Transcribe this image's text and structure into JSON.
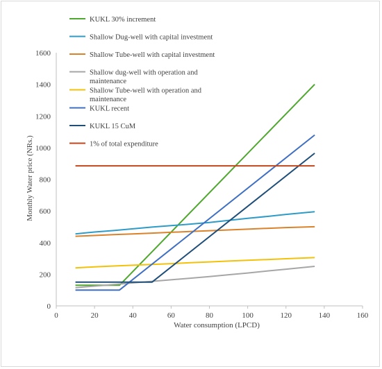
{
  "chart_data": {
    "type": "line",
    "xlabel": "Water consumption (LPCD)",
    "ylabel": "Monthly Water price (NRs.)",
    "xlim": [
      0,
      160
    ],
    "ylim": [
      0,
      1600
    ],
    "xticks": [
      0,
      20,
      40,
      60,
      80,
      100,
      120,
      140,
      160
    ],
    "yticks": [
      0,
      200,
      400,
      600,
      800,
      1000,
      1200,
      1400,
      1600
    ],
    "grid": false,
    "legend_position": "top-left inside plot",
    "series": [
      {
        "name": "KUKL 30% increment",
        "color": "#4ea72e",
        "x": [
          10,
          33,
          135
        ],
        "y": [
          130,
          130,
          1400
        ]
      },
      {
        "name": "Shallow Dug-well with capital investment",
        "color": "#2e9bc6",
        "x": [
          10,
          20,
          30,
          40,
          50,
          60,
          70,
          80,
          90,
          100,
          110,
          120,
          135
        ],
        "y": [
          455,
          467,
          476,
          487,
          498,
          507,
          517,
          527,
          540,
          553,
          565,
          578,
          595
        ]
      },
      {
        "name": "Shallow Tube-well with capital investment",
        "color": "#d9822b",
        "x": [
          10,
          20,
          30,
          40,
          50,
          60,
          70,
          80,
          90,
          100,
          110,
          120,
          135
        ],
        "y": [
          440,
          445,
          450,
          455,
          460,
          465,
          470,
          475,
          480,
          485,
          490,
          495,
          500
        ]
      },
      {
        "name": "Shallow dug-well with operation and maintenance",
        "color": "#a6a6a6",
        "x": [
          10,
          20,
          30,
          40,
          50,
          60,
          70,
          80,
          90,
          100,
          110,
          120,
          135
        ],
        "y": [
          115,
          125,
          135,
          145,
          155,
          165,
          175,
          185,
          197,
          208,
          220,
          232,
          250
        ]
      },
      {
        "name": "Shallow Tube-well with operation and maintenance",
        "color": "#f2c10a",
        "x": [
          10,
          20,
          30,
          40,
          50,
          60,
          70,
          80,
          90,
          100,
          110,
          120,
          135
        ],
        "y": [
          240,
          247,
          252,
          257,
          262,
          267,
          273,
          278,
          283,
          288,
          293,
          298,
          305
        ]
      },
      {
        "name": "KUKL recent",
        "color": "#3f6fc2",
        "x": [
          10,
          33,
          135
        ],
        "y": [
          100,
          100,
          1080
        ]
      },
      {
        "name": "KUKL 15 CuM",
        "color": "#1f4e79",
        "x": [
          10,
          50,
          135
        ],
        "y": [
          150,
          150,
          965
        ]
      },
      {
        "name": "1% of total expenditure",
        "color": "#c0461c",
        "x": [
          10,
          135
        ],
        "y": [
          885,
          885
        ]
      }
    ]
  }
}
